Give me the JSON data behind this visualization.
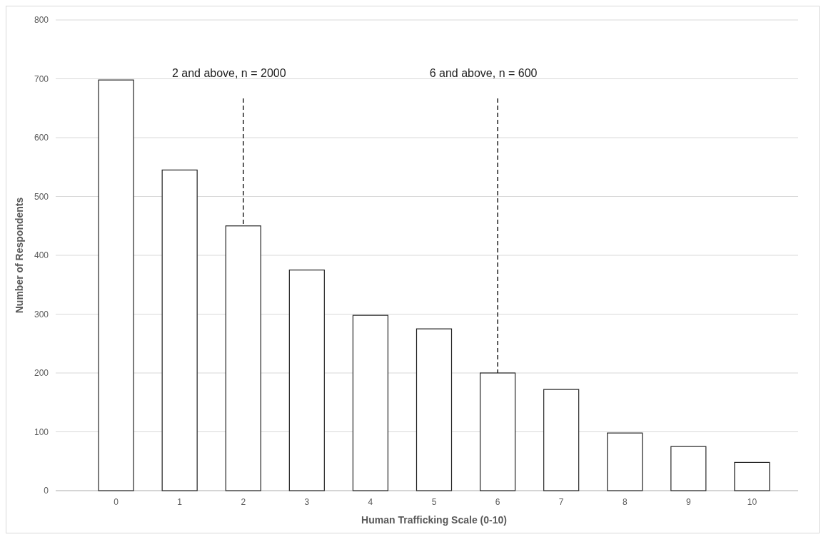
{
  "chart_data": {
    "type": "bar",
    "xlabel": "Human Trafficking Scale (0-10)",
    "ylabel": "Number of Respondents",
    "categories": [
      "0",
      "1",
      "2",
      "3",
      "4",
      "5",
      "6",
      "7",
      "8",
      "9",
      "10"
    ],
    "values": [
      698,
      545,
      450,
      375,
      298,
      275,
      200,
      172,
      98,
      75,
      48
    ],
    "color": "#ffffff",
    "ylim": [
      0,
      800
    ],
    "yticks": [
      0,
      100,
      200,
      300,
      400,
      500,
      600,
      700,
      800
    ],
    "grid": "y",
    "ref_lines": [
      {
        "axis": "x",
        "value": "2",
        "line_style": "dashed",
        "color": "#222222"
      },
      {
        "axis": "x",
        "value": "6",
        "line_style": "dashed",
        "color": "#222222"
      }
    ],
    "annotations": [
      "2 and above, n = 2000",
      "6 and above, n = 600"
    ]
  }
}
